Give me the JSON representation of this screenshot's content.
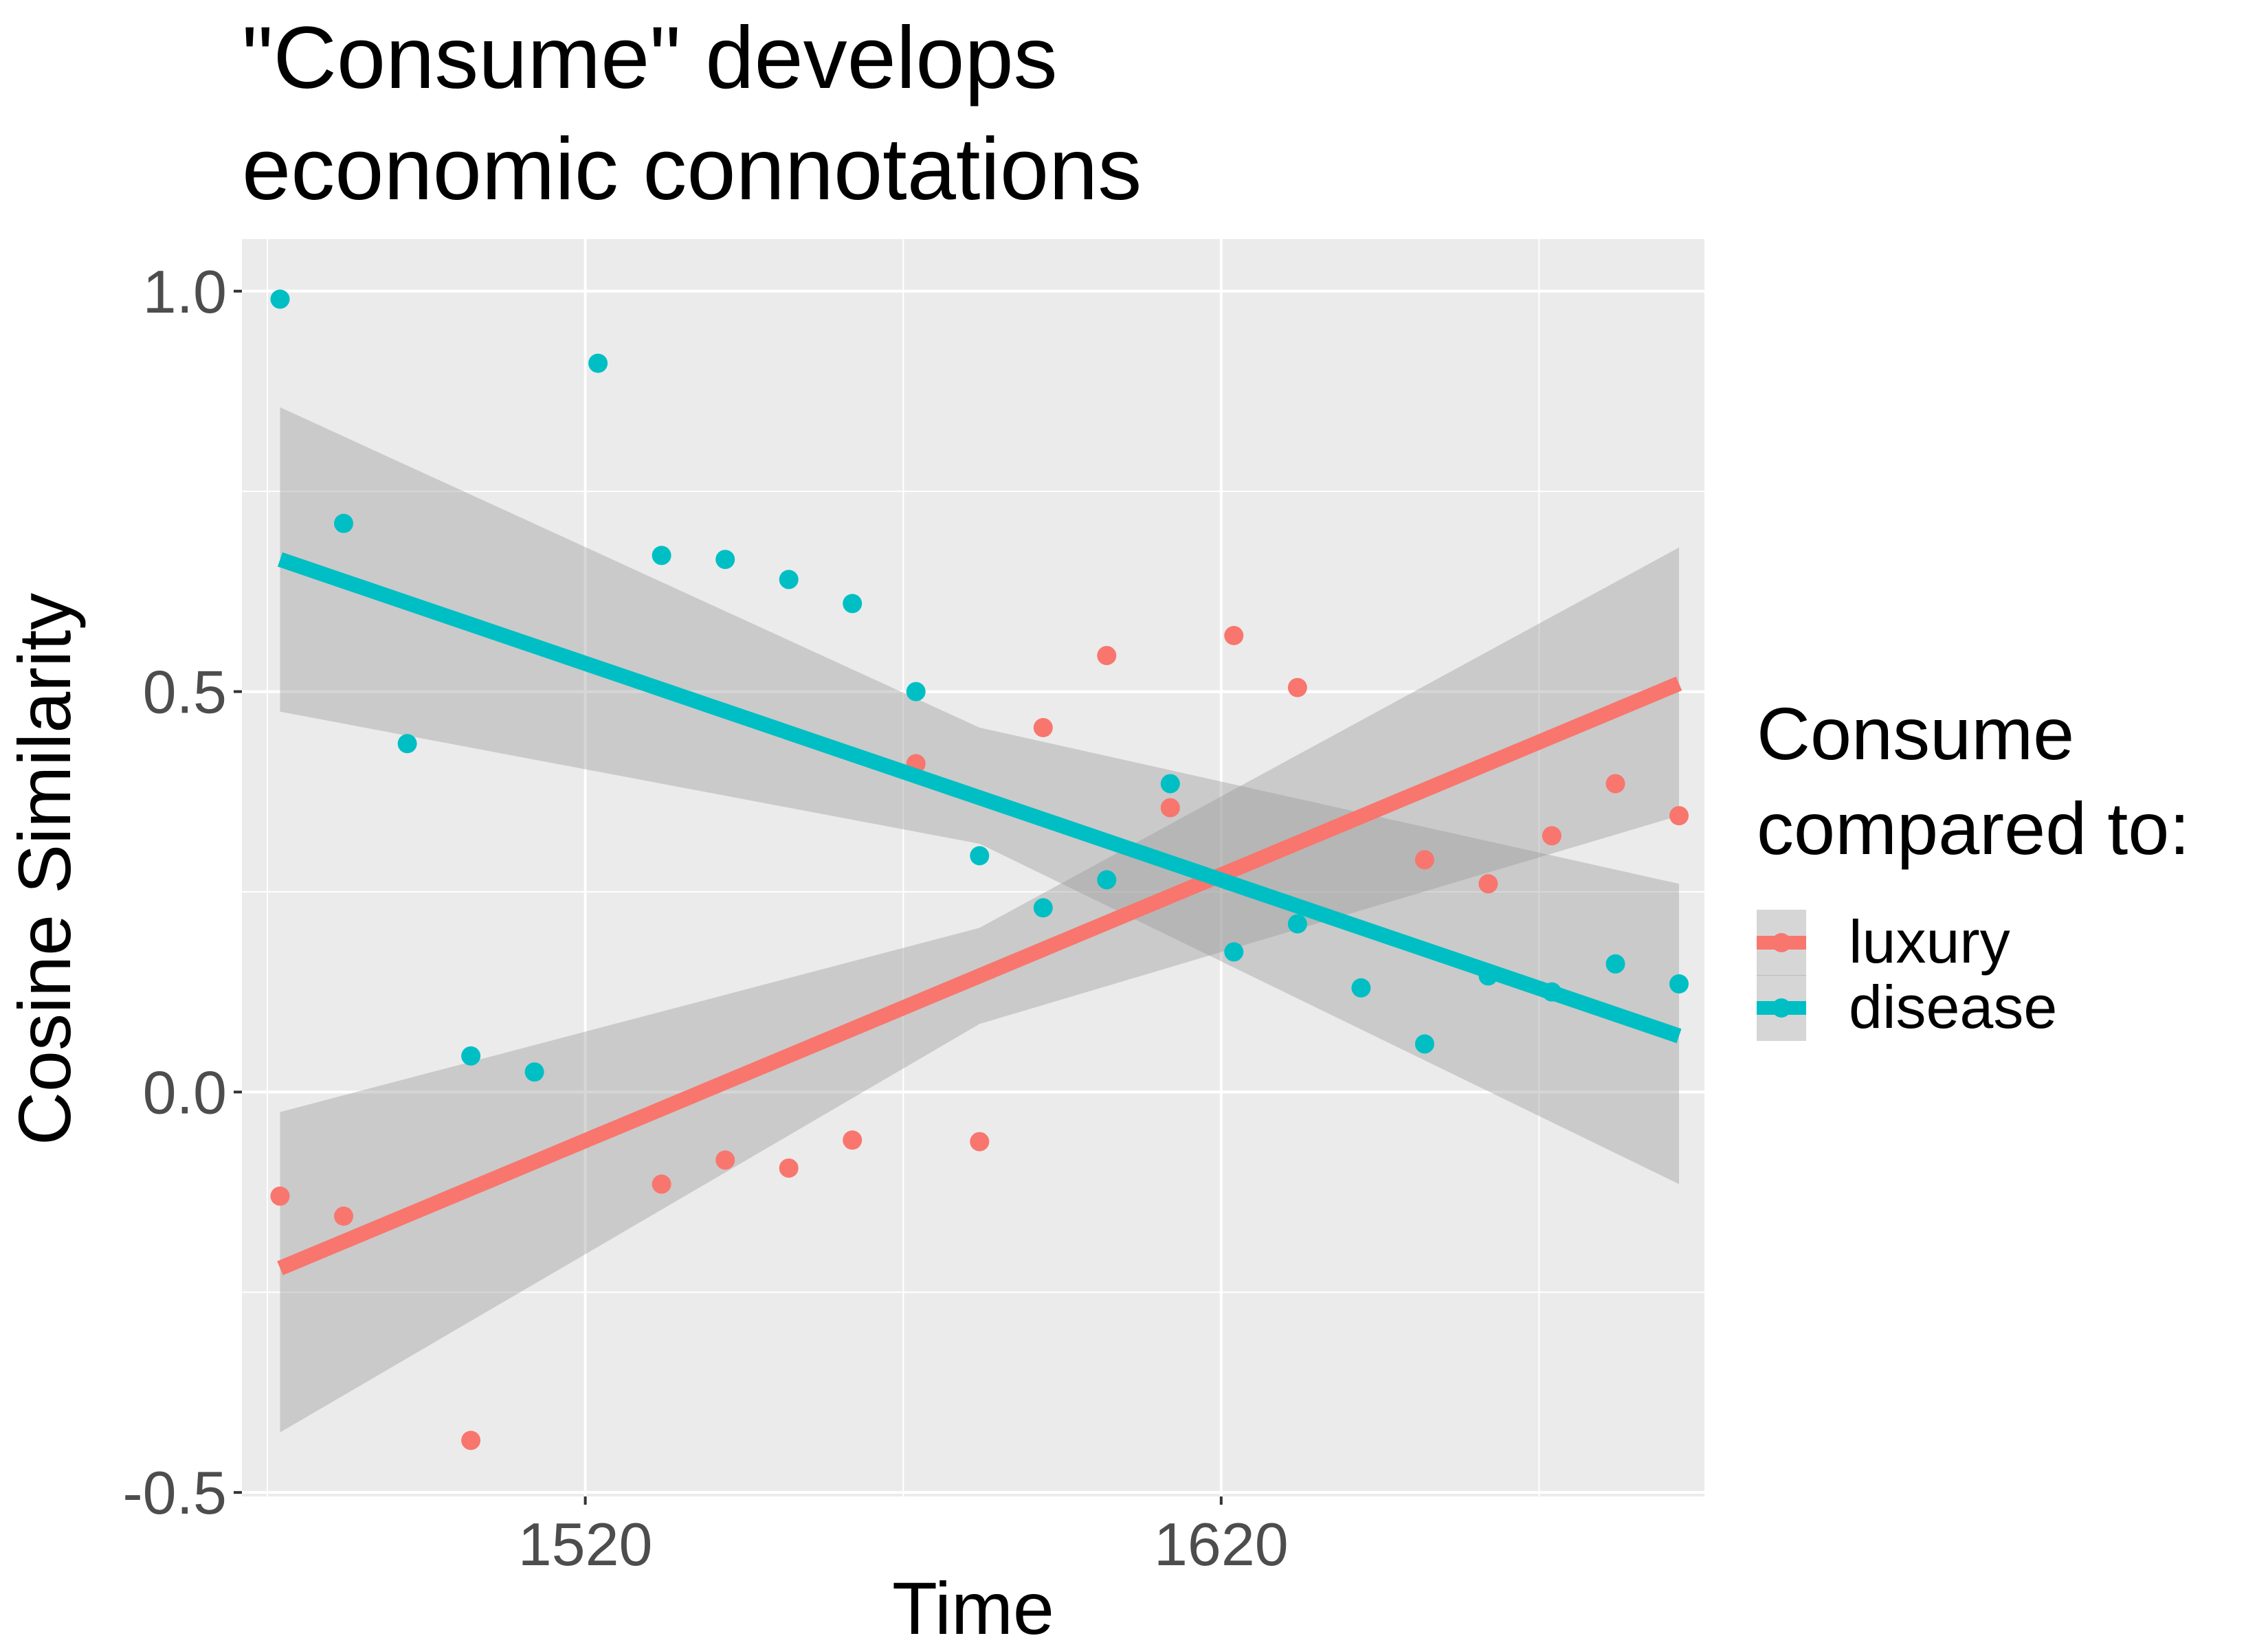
{
  "chart_data": {
    "type": "scatter",
    "title_lines": [
      "\"Consume\" develops",
      "economic connotations"
    ],
    "xlabel": "Time",
    "ylabel": "Cosine Similarity",
    "xlim": [
      1466,
      1696
    ],
    "ylim": [
      -0.505,
      1.065
    ],
    "x_ticks": [
      1520,
      1620
    ],
    "x_tick_labels": [
      "1520",
      "1620"
    ],
    "y_ticks": [
      -0.5,
      0.0,
      0.5,
      1.0
    ],
    "y_tick_labels": [
      "-0.5",
      "0.0",
      "0.5",
      "1.0"
    ],
    "grid": true,
    "legend": {
      "title_lines": [
        "Consume",
        "compared to:"
      ],
      "position": "right",
      "entries": [
        "luxury",
        "disease"
      ]
    },
    "colors": {
      "panel": "#ebebeb",
      "grid": "#ffffff",
      "ribbon": "#999999",
      "luxury": "#f8766d",
      "disease": "#00bfc4"
    },
    "series": [
      {
        "name": "luxury",
        "x": [
          1472,
          1482,
          1492,
          1502,
          1512,
          1522,
          1532,
          1542,
          1552,
          1562,
          1572,
          1582,
          1592,
          1602,
          1612,
          1622,
          1632,
          1642,
          1652,
          1662,
          1672,
          1682,
          1692
        ],
        "y": [
          -0.13,
          -0.155,
          0.0,
          -0.435,
          0.0,
          0.0,
          -0.115,
          -0.085,
          -0.095,
          -0.06,
          0.41,
          -0.062,
          0.455,
          0.545,
          0.355,
          0.57,
          0.505,
          0.0,
          0.29,
          0.26,
          0.32,
          0.385,
          0.345
        ],
        "show": [
          true,
          true,
          false,
          true,
          false,
          false,
          true,
          true,
          true,
          true,
          true,
          true,
          true,
          true,
          true,
          true,
          true,
          false,
          true,
          true,
          true,
          true,
          true
        ],
        "fit": {
          "x0": 1472,
          "y0": -0.22,
          "x1": 1692,
          "y1": 0.51
        },
        "ci": {
          "x": [
            1472,
            1582,
            1692
          ],
          "lower": [
            -0.425,
            0.085,
            0.345
          ],
          "upper": [
            -0.025,
            0.205,
            0.68
          ]
        }
      },
      {
        "name": "disease",
        "x": [
          1472,
          1482,
          1492,
          1502,
          1512,
          1522,
          1532,
          1542,
          1552,
          1562,
          1572,
          1582,
          1592,
          1602,
          1612,
          1622,
          1632,
          1642,
          1652,
          1662,
          1672,
          1682,
          1692
        ],
        "y": [
          0.99,
          0.71,
          0.435,
          0.045,
          0.025,
          0.91,
          0.67,
          0.665,
          0.64,
          0.61,
          0.5,
          0.295,
          0.23,
          0.265,
          0.385,
          0.175,
          0.21,
          0.13,
          0.06,
          0.145,
          0.125,
          0.16,
          0.135
        ],
        "show": [
          true,
          true,
          true,
          true,
          true,
          true,
          true,
          true,
          true,
          true,
          true,
          true,
          true,
          true,
          true,
          true,
          true,
          true,
          true,
          true,
          true,
          true,
          true
        ],
        "fit": {
          "x0": 1472,
          "y0": 0.665,
          "x1": 1692,
          "y1": 0.07
        },
        "ci": {
          "x": [
            1472,
            1582,
            1692
          ],
          "lower": [
            0.475,
            0.31,
            -0.115
          ],
          "upper": [
            0.855,
            0.455,
            0.26
          ]
        }
      }
    ]
  }
}
